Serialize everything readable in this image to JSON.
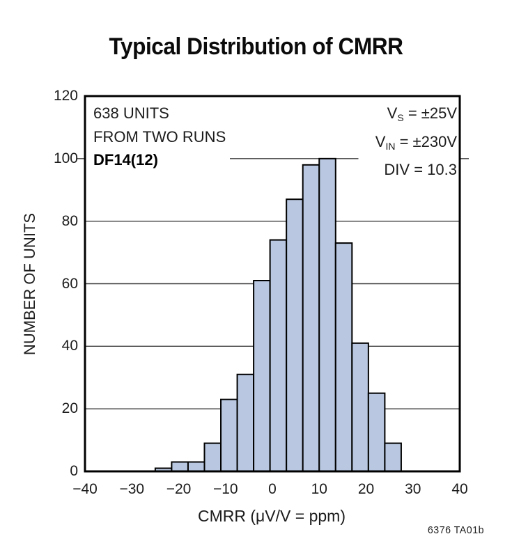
{
  "title": "Typical Distribution of CMRR",
  "figure_code": "6376 TA01b",
  "annotations": {
    "left_lines": [
      "638 UNITS",
      "FROM TWO RUNS",
      "DF14(12)"
    ],
    "right_lines": [
      {
        "pre": "V",
        "sub": "S",
        "post": " = ±25V"
      },
      {
        "pre": "V",
        "sub": "IN",
        "post": " = ±230V"
      },
      {
        "pre": "",
        "sub": "",
        "post": "DIV = 10.3"
      }
    ]
  },
  "chart_data": {
    "type": "bar",
    "subtype": "histogram",
    "title": "Typical Distribution of CMRR",
    "xlabel": "CMRR (μV/V = ppm)",
    "ylabel": "NUMBER OF UNITS",
    "xlim": [
      -40,
      40
    ],
    "ylim": [
      0,
      120
    ],
    "x_tick_labels": [
      "−40",
      "−30",
      "−20",
      "−10",
      "0",
      "10",
      "20",
      "30",
      "40"
    ],
    "x_tick_values": [
      -40,
      -30,
      -20,
      -10,
      0,
      10,
      20,
      30,
      40
    ],
    "y_tick_labels": [
      "0",
      "20",
      "40",
      "60",
      "80",
      "100",
      "120"
    ],
    "y_tick_values": [
      0,
      20,
      40,
      60,
      80,
      100,
      120
    ],
    "grid": "horizontal",
    "legend": "none",
    "bin_start": -25,
    "bin_width": 3.5,
    "values": [
      1,
      3,
      3,
      9,
      23,
      31,
      61,
      74,
      87,
      98,
      100,
      73,
      41,
      25,
      9
    ],
    "total_units": 638,
    "colors": {
      "bar_fill": "#b9c8e0",
      "bar_border": "#000000",
      "frame": "#000000",
      "gridline": "#3d3d3d"
    }
  }
}
